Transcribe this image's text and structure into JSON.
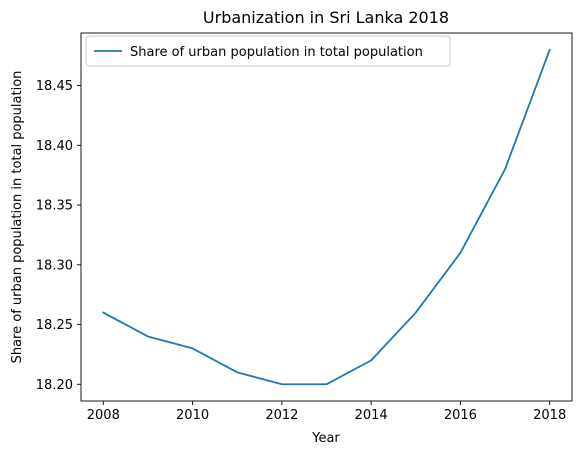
{
  "chart_data": {
    "type": "line",
    "title": "Urbanization in Sri Lanka 2018",
    "xlabel": "Year",
    "ylabel": "Share of urban population in total population",
    "x": [
      2008,
      2009,
      2010,
      2011,
      2012,
      2013,
      2014,
      2015,
      2016,
      2017,
      2018
    ],
    "series": [
      {
        "name": "Share of urban population in total population",
        "values": [
          18.26,
          18.24,
          18.23,
          18.21,
          18.2,
          18.2,
          18.22,
          18.26,
          18.31,
          18.38,
          18.48
        ],
        "color": "#1f77b4"
      }
    ],
    "xlim": [
      2007.5,
      2018.5
    ],
    "ylim": [
      18.186,
      18.494
    ],
    "xticks": [
      "2008",
      "2010",
      "2012",
      "2014",
      "2016",
      "2018"
    ],
    "yticks": [
      "18.20",
      "18.25",
      "18.30",
      "18.35",
      "18.40",
      "18.45"
    ],
    "grid": false,
    "legend_position": "upper left"
  }
}
